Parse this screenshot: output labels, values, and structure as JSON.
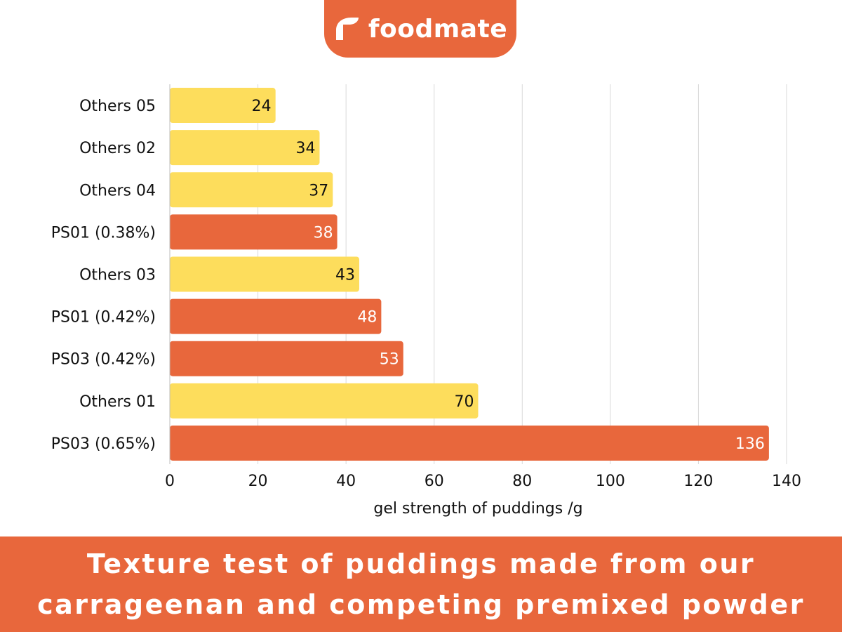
{
  "brand": {
    "name": "foodmate",
    "color": "#e8673c"
  },
  "banner": {
    "line1": "Texture test of puddings made from our",
    "line2": "carrageenan and competing premixed powder"
  },
  "colors": {
    "ours": "#e8673c",
    "others": "#fddd5c",
    "grid": "#d9d9d9"
  },
  "chart_data": {
    "type": "bar",
    "orientation": "horizontal",
    "categories": [
      "Others 05",
      "Others 02",
      "Others 04",
      "PS01 (0.38%)",
      "Others 03",
      "PS01 (0.42%)",
      "PS03 (0.42%)",
      "Others 01",
      "PS03 (0.65%)"
    ],
    "values": [
      24,
      34,
      37,
      38,
      43,
      48,
      53,
      70,
      136
    ],
    "bar_colors": [
      "#fddd5c",
      "#fddd5c",
      "#fddd5c",
      "#e8673c",
      "#fddd5c",
      "#e8673c",
      "#e8673c",
      "#fddd5c",
      "#e8673c"
    ],
    "xlabel": "gel strength of puddings /g",
    "ylabel": "",
    "xlim": [
      0,
      140
    ],
    "xticks": [
      0,
      20,
      40,
      60,
      80,
      100,
      120,
      140
    ],
    "grid": true,
    "data_labels": true
  }
}
